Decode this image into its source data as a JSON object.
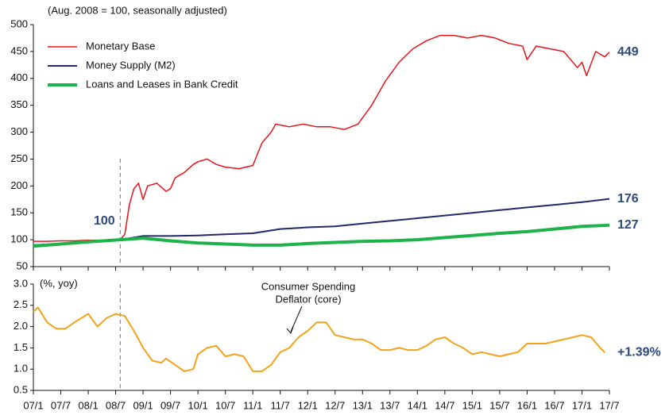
{
  "chart_data": [
    {
      "type": "line",
      "subtitle": "(Aug. 2008 = 100, seasonally adjusted)",
      "xlim": [
        0,
        126
      ],
      "ylim": [
        50,
        500
      ],
      "yticks": [
        50,
        100,
        150,
        200,
        250,
        300,
        350,
        400,
        450,
        500
      ],
      "legend": "upper left",
      "reference_line": {
        "x": 19
      },
      "annotations": [
        {
          "text": "100"
        }
      ],
      "series": [
        {
          "name": "Monetary Base",
          "color": "#e8141c",
          "width": 1.5,
          "end_label": "449",
          "x": [
            0,
            3,
            6,
            9,
            12,
            15,
            18,
            19,
            20,
            21,
            22,
            23,
            24,
            25,
            27,
            29,
            30,
            31,
            33,
            35,
            36,
            38,
            40,
            42,
            45,
            47,
            48,
            50,
            52,
            53,
            56,
            59,
            62,
            65,
            68,
            71,
            74,
            77,
            80,
            83,
            86,
            89,
            92,
            95,
            98,
            101,
            104,
            107,
            108,
            110,
            113,
            116,
            119,
            120,
            121,
            123,
            125,
            126
          ],
          "values": [
            97,
            97,
            98,
            98,
            99,
            99,
            100,
            100,
            110,
            165,
            195,
            205,
            175,
            200,
            205,
            190,
            195,
            215,
            225,
            240,
            245,
            250,
            240,
            235,
            232,
            236,
            238,
            280,
            300,
            315,
            310,
            315,
            310,
            310,
            305,
            315,
            350,
            395,
            430,
            455,
            470,
            480,
            480,
            475,
            480,
            475,
            465,
            460,
            435,
            460,
            455,
            450,
            420,
            430,
            405,
            450,
            440,
            449
          ]
        },
        {
          "name": "Money Supply (M2)",
          "color": "#1f2a6b",
          "width": 2,
          "end_label": "176",
          "x": [
            0,
            6,
            12,
            19,
            24,
            30,
            36,
            42,
            48,
            54,
            60,
            66,
            72,
            78,
            84,
            90,
            96,
            102,
            108,
            114,
            120,
            126
          ],
          "values": [
            90,
            93,
            97,
            100,
            107,
            107,
            108,
            110,
            112,
            120,
            123,
            125,
            130,
            135,
            140,
            145,
            150,
            155,
            160,
            165,
            170,
            176
          ]
        },
        {
          "name": "Loans and Leases in Bank Credit",
          "color": "#1db34a",
          "width": 4,
          "end_label": "127",
          "x": [
            0,
            6,
            12,
            19,
            24,
            30,
            36,
            42,
            48,
            54,
            60,
            66,
            72,
            78,
            84,
            90,
            96,
            102,
            108,
            114,
            120,
            126
          ],
          "values": [
            88,
            92,
            96,
            100,
            103,
            98,
            94,
            92,
            90,
            90,
            93,
            95,
            97,
            98,
            100,
            104,
            108,
            112,
            115,
            120,
            125,
            127
          ]
        }
      ]
    },
    {
      "type": "line",
      "ylabel": "(%, yoy)",
      "xlim": [
        0,
        126
      ],
      "xticks": [
        {
          "value": 0,
          "label": "07/1"
        },
        {
          "value": 6,
          "label": "07/7"
        },
        {
          "value": 12,
          "label": "08/1"
        },
        {
          "value": 18,
          "label": "08/7"
        },
        {
          "value": 24,
          "label": "09/1"
        },
        {
          "value": 30,
          "label": "09/7"
        },
        {
          "value": 36,
          "label": "10/1"
        },
        {
          "value": 42,
          "label": "10/7"
        },
        {
          "value": 48,
          "label": "11/1"
        },
        {
          "value": 54,
          "label": "11/7"
        },
        {
          "value": 60,
          "label": "12/1"
        },
        {
          "value": 66,
          "label": "12/7"
        },
        {
          "value": 72,
          "label": "13/1"
        },
        {
          "value": 78,
          "label": "13/7"
        },
        {
          "value": 84,
          "label": "14/1"
        },
        {
          "value": 90,
          "label": "14/7"
        },
        {
          "value": 96,
          "label": "15/1"
        },
        {
          "value": 102,
          "label": "15/7"
        },
        {
          "value": 108,
          "label": "16/1"
        },
        {
          "value": 114,
          "label": "16/7"
        },
        {
          "value": 120,
          "label": "17/1"
        },
        {
          "value": 126,
          "label": "17/7"
        }
      ],
      "ylim": [
        0.5,
        3.0
      ],
      "yticks": [
        0.5,
        {
          "value": 1,
          "label": "1.0"
        },
        1.5,
        {
          "value": 2,
          "label": "2.0"
        },
        2.5,
        {
          "value": 3,
          "label": "3.0"
        }
      ],
      "reference_line": {
        "x": 19
      },
      "annotations": [
        {
          "lines": [
            "Consumer Spending",
            "Deflator (core)"
          ]
        }
      ],
      "series": [
        {
          "name": "Consumer Spending Deflator (core)",
          "color": "#f5a21b",
          "width": 2,
          "end_label": "+1.39%",
          "x": [
            0,
            1,
            3,
            5,
            7,
            9,
            12,
            14,
            16,
            18,
            20,
            22,
            24,
            26,
            28,
            29,
            31,
            33,
            35,
            36,
            38,
            40,
            42,
            44,
            46,
            48,
            50,
            52,
            54,
            56,
            58,
            60,
            62,
            64,
            66,
            68,
            70,
            72,
            74,
            76,
            78,
            80,
            82,
            84,
            86,
            88,
            90,
            92,
            94,
            96,
            98,
            100,
            102,
            104,
            106,
            108,
            110,
            112,
            114,
            116,
            118,
            120,
            122,
            124,
            125
          ],
          "values": [
            2.35,
            2.45,
            2.1,
            1.95,
            1.95,
            2.1,
            2.3,
            2.0,
            2.2,
            2.3,
            2.25,
            1.9,
            1.5,
            1.2,
            1.15,
            1.25,
            1.1,
            0.95,
            1.0,
            1.35,
            1.5,
            1.55,
            1.3,
            1.35,
            1.3,
            0.95,
            0.95,
            1.1,
            1.4,
            1.5,
            1.75,
            1.9,
            2.1,
            2.1,
            1.8,
            1.75,
            1.7,
            1.7,
            1.6,
            1.45,
            1.45,
            1.5,
            1.45,
            1.45,
            1.55,
            1.7,
            1.75,
            1.6,
            1.5,
            1.35,
            1.4,
            1.35,
            1.3,
            1.35,
            1.4,
            1.6,
            1.6,
            1.6,
            1.65,
            1.7,
            1.75,
            1.8,
            1.75,
            1.5,
            1.39
          ]
        }
      ]
    }
  ]
}
